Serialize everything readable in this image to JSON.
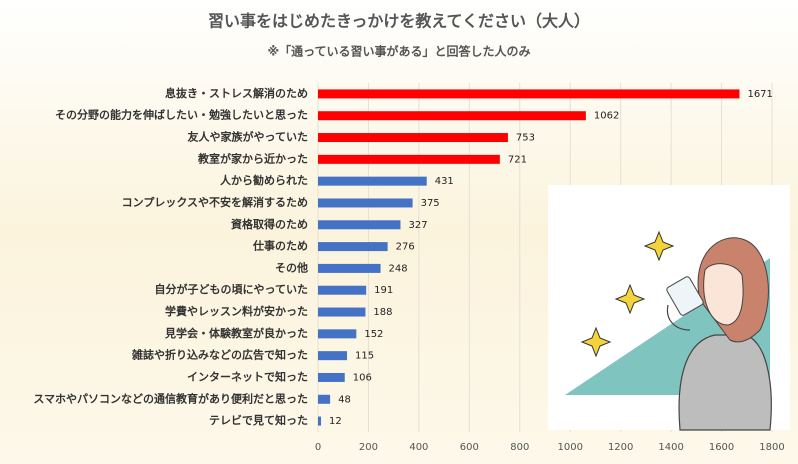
{
  "chart_data": {
    "type": "hbar",
    "title": "習い事をはじめたきっかけを教えてください（大人）",
    "subtitle": "※「通っている習い事がある」と回答した人のみ",
    "categories": [
      "息抜き・ストレス解消のため",
      "その分野の能力を伸ばしたい・勉強したいと思った",
      "友人や家族がやっていた",
      "教室が家から近かった",
      "人から勧められた",
      "コンプレックスや不安を解消するため",
      "資格取得のため",
      "仕事のため",
      "その他",
      "自分が子どもの頃にやっていた",
      "学費やレッスン料が安かった",
      "見学会・体験教室が良かった",
      "雑誌や折り込みなどの広告で知った",
      "インターネットで知った",
      "スマホやパソコンなどの通信教育があり便利だと思った",
      "テレビで見て知った"
    ],
    "values": [
      1671,
      1062,
      753,
      721,
      431,
      375,
      327,
      276,
      248,
      191,
      188,
      152,
      115,
      106,
      48,
      12
    ],
    "colors": [
      "#ff0000",
      "#ff0000",
      "#ff0000",
      "#ff0000",
      "#4472c4",
      "#4472c4",
      "#4472c4",
      "#4472c4",
      "#4472c4",
      "#4472c4",
      "#4472c4",
      "#4472c4",
      "#4472c4",
      "#4472c4",
      "#4472c4",
      "#4472c4"
    ],
    "xlim": [
      0,
      1800
    ],
    "xticks": [
      0,
      200,
      400,
      600,
      800,
      1000,
      1200,
      1400,
      1600,
      1800
    ],
    "grid": true
  }
}
